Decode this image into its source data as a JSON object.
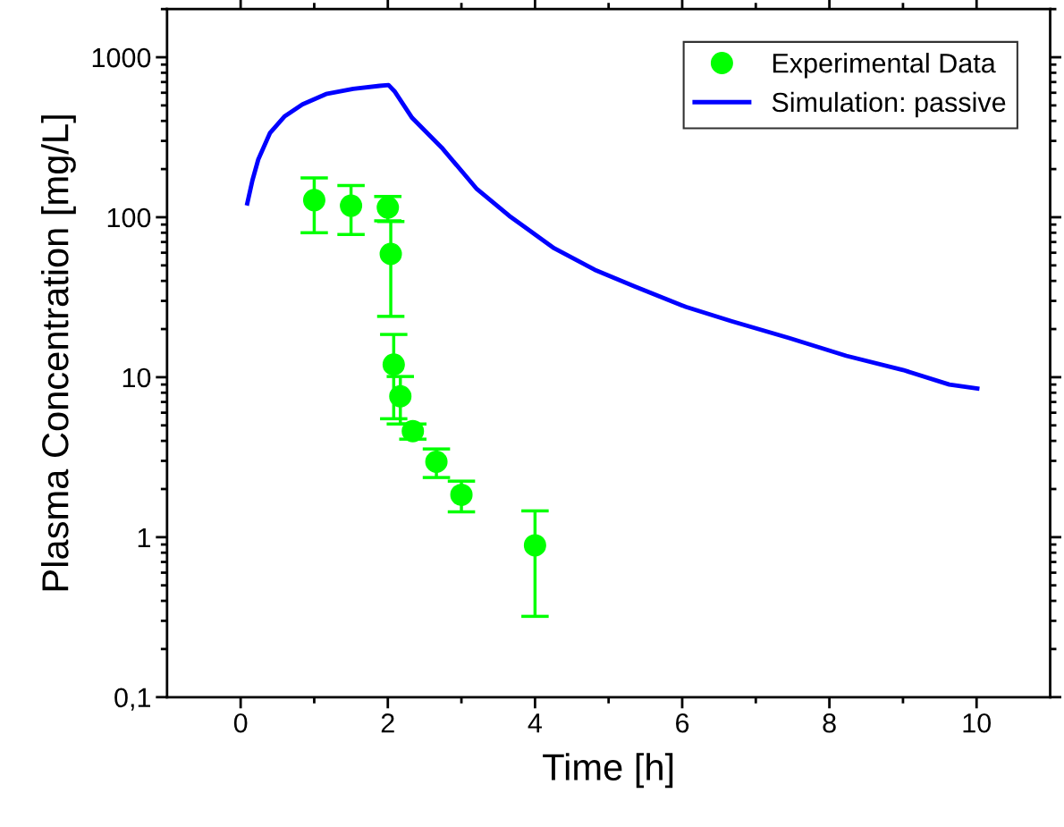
{
  "chart_data": {
    "type": "line",
    "xlabel": "Time [h]",
    "ylabel": "Plasma Concentration [mg/L]",
    "log": "y",
    "grid": false,
    "legend": "top right",
    "xlim": [
      -1,
      11
    ],
    "xticks": [
      0,
      {
        "value": 1,
        "label": null
      },
      2,
      {
        "value": 3,
        "label": null
      },
      4,
      {
        "value": 5,
        "label": null
      },
      6,
      {
        "value": 7,
        "label": null
      },
      8,
      {
        "value": 9,
        "label": null
      },
      10
    ],
    "ylim": [
      0.1,
      2000
    ],
    "yticks": [
      {
        "value": 0.1,
        "label": "0,1"
      },
      1,
      10,
      100,
      1000
    ],
    "series": [
      {
        "name": "Experimental Data",
        "type": "scatter",
        "marker": "circle",
        "color": "#00ff00",
        "x": [
          1.0,
          1.5,
          2.0,
          2.04,
          2.08,
          2.17,
          2.34,
          2.66,
          3.0,
          4.0
        ],
        "values": [
          128,
          118,
          115,
          59,
          12.0,
          7.6,
          4.6,
          2.96,
          1.84,
          0.89
        ],
        "errors": [
          48,
          40,
          20,
          35,
          6.5,
          2.5,
          0.5,
          0.6,
          0.4,
          0.57
        ]
      },
      {
        "name": "Simulation: passive",
        "marker": "none",
        "line_style": "solid",
        "color": "#0000ff",
        "x": [
          0.09,
          0.16,
          0.24,
          0.4,
          0.6,
          0.84,
          1.16,
          1.53,
          1.89,
          2.01,
          2.09,
          2.33,
          2.73,
          3.21,
          3.65,
          4.26,
          4.81,
          5.35,
          6.05,
          6.67,
          7.45,
          8.23,
          9.0,
          9.63,
          10.01
        ],
        "values": [
          122,
          170,
          230,
          337,
          428,
          507,
          589,
          635,
          663,
          670,
          614,
          418,
          273,
          150,
          102,
          64,
          47,
          37,
          27.5,
          22.4,
          17.6,
          13.6,
          11.1,
          9.0,
          8.5
        ]
      }
    ]
  }
}
